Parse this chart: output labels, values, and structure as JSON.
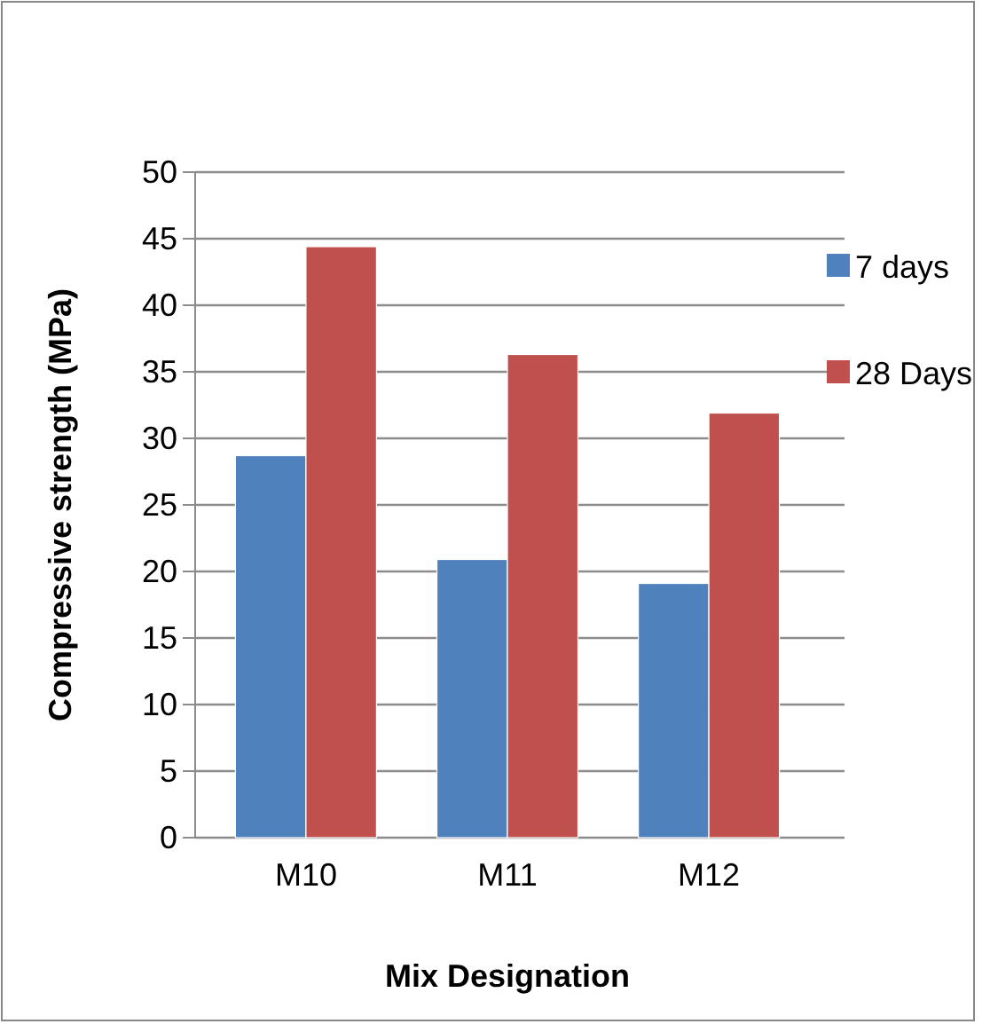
{
  "chart_data": {
    "type": "bar",
    "xlabel": "Mix Designation",
    "ylabel": "Compressive strength (MPa)",
    "categories": [
      "M10",
      "M11",
      "M12"
    ],
    "series": [
      {
        "name": "7 days",
        "color": "#4f81bd",
        "values": [
          28.7,
          20.9,
          19.1
        ]
      },
      {
        "name": "28 Days",
        "color": "#c0504d",
        "values": [
          44.4,
          36.3,
          31.9
        ]
      }
    ],
    "ylim": [
      0,
      50
    ],
    "yticks": [
      0,
      5,
      10,
      15,
      20,
      25,
      30,
      35,
      40,
      45,
      50
    ],
    "grid": "y",
    "legend": "right"
  }
}
